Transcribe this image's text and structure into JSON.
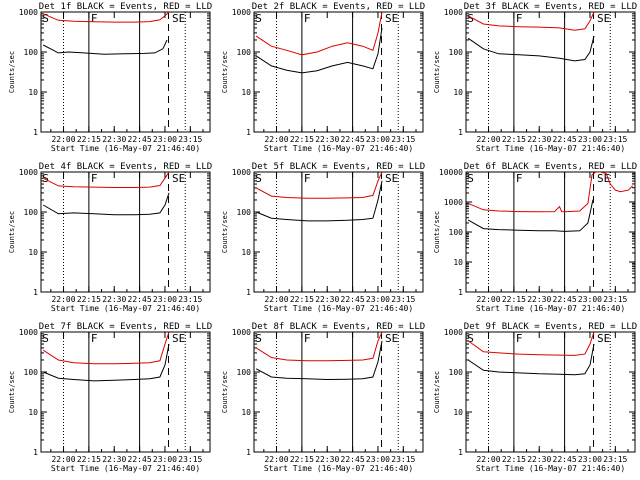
{
  "chart_data": [
    {
      "type": "line",
      "title": "Det 1f BLACK = Events, RED = LLD",
      "xlabel": "Start Time (16-May-07 21:46:40)",
      "ylabel": "Counts/sec",
      "yscale": "log",
      "ylim": [
        1,
        1000
      ],
      "yticks": [
        "1",
        "10",
        "100",
        "1000"
      ],
      "xlim": [
        21.778,
        23.444
      ],
      "xticks": [
        {
          "label": "22:00",
          "value": 22.0
        },
        {
          "label": "22:15",
          "value": 22.25
        },
        {
          "label": "22:30",
          "value": 22.5
        },
        {
          "label": "22:45",
          "value": 22.75
        },
        {
          "label": "23:00",
          "value": 23.0
        },
        {
          "label": "23:15",
          "value": 23.25
        }
      ],
      "markers": [
        "S",
        "F",
        "SE"
      ],
      "series": [
        {
          "color": "#000000",
          "x": [
            21.8,
            21.95,
            22.05,
            22.2,
            22.4,
            22.6,
            22.8,
            22.9,
            22.98,
            23.02
          ],
          "y": [
            150,
            95,
            100,
            95,
            88,
            90,
            92,
            95,
            120,
            200
          ]
        },
        {
          "color": "#dd0000",
          "x": [
            21.8,
            21.95,
            22.1,
            22.3,
            22.5,
            22.7,
            22.85,
            22.95,
            23.0,
            23.04
          ],
          "y": [
            900,
            620,
            590,
            570,
            560,
            560,
            575,
            640,
            800,
            1000
          ]
        }
      ]
    },
    {
      "type": "line",
      "title": "Det 2f BLACK = Events, RED = LLD",
      "xlabel": "Start Time (16-May-07 21:46:40)",
      "ylabel": "Counts/sec",
      "yscale": "log",
      "ylim": [
        1,
        1000
      ],
      "yticks": [
        "1",
        "10",
        "100",
        "1000"
      ],
      "xlim": [
        21.778,
        23.444
      ],
      "xticks": [
        {
          "label": "22:00",
          "value": 22.0
        },
        {
          "label": "22:15",
          "value": 22.25
        },
        {
          "label": "22:30",
          "value": 22.5
        },
        {
          "label": "22:45",
          "value": 22.75
        },
        {
          "label": "23:00",
          "value": 23.0
        },
        {
          "label": "23:15",
          "value": 23.25
        }
      ],
      "markers": [
        "S",
        "F",
        "SE"
      ],
      "series": [
        {
          "color": "#000000",
          "x": [
            21.8,
            21.95,
            22.1,
            22.25,
            22.4,
            22.55,
            22.7,
            22.85,
            22.95,
            23.0,
            23.04
          ],
          "y": [
            80,
            45,
            35,
            30,
            34,
            45,
            55,
            45,
            38,
            90,
            400
          ]
        },
        {
          "color": "#dd0000",
          "x": [
            21.8,
            21.95,
            22.1,
            22.25,
            22.4,
            22.55,
            22.7,
            22.85,
            22.95,
            23.0,
            23.04
          ],
          "y": [
            250,
            140,
            110,
            85,
            100,
            140,
            170,
            140,
            110,
            300,
            1000
          ]
        }
      ]
    },
    {
      "type": "line",
      "title": "Det 3f BLACK = Events, RED = LLD",
      "xlabel": "Start Time (16-May-07 21:46:40)",
      "ylabel": "Counts/sec",
      "yscale": "log",
      "ylim": [
        1,
        1000
      ],
      "yticks": [
        "1",
        "10",
        "100",
        "1000"
      ],
      "xlim": [
        21.778,
        23.444
      ],
      "xticks": [
        {
          "label": "22:00",
          "value": 22.0
        },
        {
          "label": "22:15",
          "value": 22.25
        },
        {
          "label": "22:30",
          "value": 22.5
        },
        {
          "label": "22:45",
          "value": 22.75
        },
        {
          "label": "23:00",
          "value": 23.0
        },
        {
          "label": "23:15",
          "value": 23.25
        }
      ],
      "markers": [
        "S",
        "F",
        "SE"
      ],
      "series": [
        {
          "color": "#000000",
          "x": [
            21.8,
            21.95,
            22.1,
            22.3,
            22.5,
            22.7,
            22.85,
            22.95,
            23.0,
            23.04
          ],
          "y": [
            220,
            120,
            90,
            85,
            80,
            70,
            60,
            65,
            100,
            250
          ]
        },
        {
          "color": "#dd0000",
          "x": [
            21.8,
            21.95,
            22.1,
            22.3,
            22.5,
            22.7,
            22.85,
            22.95,
            23.0,
            23.04
          ],
          "y": [
            800,
            500,
            450,
            430,
            420,
            400,
            350,
            380,
            600,
            1000
          ]
        }
      ]
    },
    {
      "type": "line",
      "title": "Det 4f BLACK = Events, RED = LLD",
      "xlabel": "Start Time (16-May-07 21:46:40)",
      "ylabel": "Counts/sec",
      "yscale": "log",
      "ylim": [
        1,
        1000
      ],
      "yticks": [
        "1",
        "10",
        "100",
        "1000"
      ],
      "xlim": [
        21.778,
        23.444
      ],
      "xticks": [
        {
          "label": "22:00",
          "value": 22.0
        },
        {
          "label": "22:15",
          "value": 22.25
        },
        {
          "label": "22:30",
          "value": 22.5
        },
        {
          "label": "22:45",
          "value": 22.75
        },
        {
          "label": "23:00",
          "value": 23.0
        },
        {
          "label": "23:15",
          "value": 23.25
        }
      ],
      "markers": [
        "S",
        "F",
        "SE"
      ],
      "series": [
        {
          "color": "#000000",
          "x": [
            21.8,
            21.95,
            22.1,
            22.3,
            22.5,
            22.7,
            22.85,
            22.95,
            23.0,
            23.04
          ],
          "y": [
            150,
            90,
            95,
            90,
            85,
            85,
            88,
            95,
            150,
            300
          ]
        },
        {
          "color": "#dd0000",
          "x": [
            21.8,
            21.95,
            22.1,
            22.3,
            22.5,
            22.7,
            22.85,
            22.95,
            23.0,
            23.04
          ],
          "y": [
            700,
            450,
            430,
            420,
            410,
            410,
            420,
            460,
            700,
            1000
          ]
        }
      ]
    },
    {
      "type": "line",
      "title": "Det 5f BLACK = Events, RED = LLD",
      "xlabel": "Start Time (16-May-07 21:46:40)",
      "ylabel": "Counts/sec",
      "yscale": "log",
      "ylim": [
        1,
        1000
      ],
      "yticks": [
        "1",
        "10",
        "100",
        "1000"
      ],
      "xlim": [
        21.778,
        23.444
      ],
      "xticks": [
        {
          "label": "22:00",
          "value": 22.0
        },
        {
          "label": "22:15",
          "value": 22.25
        },
        {
          "label": "22:30",
          "value": 22.5
        },
        {
          "label": "22:45",
          "value": 22.75
        },
        {
          "label": "23:00",
          "value": 23.0
        },
        {
          "label": "23:15",
          "value": 23.25
        }
      ],
      "markers": [
        "S",
        "F",
        "SE"
      ],
      "series": [
        {
          "color": "#000000",
          "x": [
            21.8,
            21.95,
            22.1,
            22.3,
            22.5,
            22.7,
            22.85,
            22.95,
            23.0,
            23.04
          ],
          "y": [
            100,
            70,
            65,
            60,
            60,
            62,
            65,
            70,
            200,
            600
          ]
        },
        {
          "color": "#dd0000",
          "x": [
            21.8,
            21.95,
            22.1,
            22.3,
            22.5,
            22.7,
            22.85,
            22.95,
            23.0,
            23.04
          ],
          "y": [
            400,
            250,
            230,
            220,
            220,
            225,
            230,
            260,
            600,
            1000
          ]
        }
      ]
    },
    {
      "type": "line",
      "title": "Det 6f BLACK = Events, RED = LLD",
      "xlabel": "Start Time (16-May-07 21:46:40)",
      "ylabel": "Counts/sec",
      "yscale": "log",
      "ylim": [
        1,
        10000
      ],
      "yticks": [
        "1",
        "10",
        "100",
        "1000",
        "10000"
      ],
      "xlim": [
        21.778,
        23.444
      ],
      "xticks": [
        {
          "label": "22:00",
          "value": 22.0
        },
        {
          "label": "22:15",
          "value": 22.25
        },
        {
          "label": "22:30",
          "value": 22.5
        },
        {
          "label": "22:45",
          "value": 22.75
        },
        {
          "label": "23:00",
          "value": 23.0
        },
        {
          "label": "23:15",
          "value": 23.25
        }
      ],
      "markers": [
        "S",
        "F",
        "SE"
      ],
      "series": [
        {
          "color": "#000000",
          "x": [
            21.8,
            21.95,
            22.1,
            22.3,
            22.5,
            22.65,
            22.75,
            22.9,
            22.98,
            23.03
          ],
          "y": [
            250,
            130,
            120,
            115,
            110,
            110,
            105,
            110,
            200,
            1200
          ]
        },
        {
          "color": "#dd0000",
          "x": [
            21.8,
            21.95,
            22.1,
            22.3,
            22.5,
            22.65,
            22.7,
            22.72,
            22.75,
            22.9,
            22.98,
            23.02,
            23.06,
            23.1,
            23.16,
            23.2,
            23.25,
            23.3,
            23.38,
            23.42
          ],
          "y": [
            900,
            550,
            500,
            480,
            470,
            480,
            700,
            480,
            470,
            500,
            900,
            8000,
            10000,
            10000,
            9000,
            4000,
            2500,
            2200,
            2500,
            3500
          ]
        }
      ]
    },
    {
      "type": "line",
      "title": "Det 7f BLACK = Events, RED = LLD",
      "xlabel": "Start Time (16-May-07 21:46:40)",
      "ylabel": "Counts/sec",
      "yscale": "log",
      "ylim": [
        1,
        1000
      ],
      "yticks": [
        "1",
        "10",
        "100",
        "1000"
      ],
      "xlim": [
        21.778,
        23.444
      ],
      "xticks": [
        {
          "label": "22:00",
          "value": 22.0
        },
        {
          "label": "22:15",
          "value": 22.25
        },
        {
          "label": "22:30",
          "value": 22.5
        },
        {
          "label": "22:45",
          "value": 22.75
        },
        {
          "label": "23:00",
          "value": 23.0
        },
        {
          "label": "23:15",
          "value": 23.25
        }
      ],
      "markers": [
        "S",
        "F",
        "SE"
      ],
      "series": [
        {
          "color": "#000000",
          "x": [
            21.8,
            21.95,
            22.1,
            22.3,
            22.5,
            22.7,
            22.85,
            22.95,
            23.0,
            23.04
          ],
          "y": [
            100,
            70,
            65,
            60,
            62,
            65,
            68,
            75,
            150,
            500
          ]
        },
        {
          "color": "#dd0000",
          "x": [
            21.8,
            21.95,
            22.1,
            22.3,
            22.5,
            22.7,
            22.85,
            22.95,
            23.0,
            23.04
          ],
          "y": [
            350,
            200,
            170,
            160,
            160,
            165,
            170,
            190,
            500,
            1000
          ]
        }
      ]
    },
    {
      "type": "line",
      "title": "Det 8f BLACK = Events, RED = LLD",
      "xlabel": "Start Time (16-May-07 21:46:40)",
      "ylabel": "Counts/sec",
      "yscale": "log",
      "ylim": [
        1,
        1000
      ],
      "yticks": [
        "1",
        "10",
        "100",
        "1000"
      ],
      "xlim": [
        21.778,
        23.444
      ],
      "xticks": [
        {
          "label": "22:00",
          "value": 22.0
        },
        {
          "label": "22:15",
          "value": 22.25
        },
        {
          "label": "22:30",
          "value": 22.5
        },
        {
          "label": "22:45",
          "value": 22.75
        },
        {
          "label": "23:00",
          "value": 23.0
        },
        {
          "label": "23:15",
          "value": 23.25
        }
      ],
      "markers": [
        "S",
        "F",
        "SE"
      ],
      "series": [
        {
          "color": "#000000",
          "x": [
            21.8,
            21.95,
            22.1,
            22.3,
            22.5,
            22.7,
            22.85,
            22.95,
            23.0,
            23.04
          ],
          "y": [
            120,
            75,
            70,
            68,
            65,
            66,
            68,
            75,
            180,
            600
          ]
        },
        {
          "color": "#dd0000",
          "x": [
            21.8,
            21.95,
            22.1,
            22.3,
            22.5,
            22.7,
            22.85,
            22.95,
            23.0,
            23.04
          ],
          "y": [
            400,
            230,
            200,
            190,
            190,
            195,
            200,
            220,
            600,
            1000
          ]
        }
      ]
    },
    {
      "type": "line",
      "title": "Det 9f BLACK = Events, RED = LLD",
      "xlabel": "Start Time (16-May-07 21:46:40)",
      "ylabel": "Counts/sec",
      "yscale": "log",
      "ylim": [
        1,
        1000
      ],
      "yticks": [
        "1",
        "10",
        "100",
        "1000"
      ],
      "xlim": [
        21.778,
        23.444
      ],
      "xticks": [
        {
          "label": "22:00",
          "value": 22.0
        },
        {
          "label": "22:15",
          "value": 22.25
        },
        {
          "label": "22:30",
          "value": 22.5
        },
        {
          "label": "22:45",
          "value": 22.75
        },
        {
          "label": "23:00",
          "value": 23.0
        },
        {
          "label": "23:15",
          "value": 23.25
        }
      ],
      "markers": [
        "S",
        "F",
        "SE"
      ],
      "series": [
        {
          "color": "#000000",
          "x": [
            21.8,
            21.95,
            22.1,
            22.3,
            22.5,
            22.7,
            22.85,
            22.95,
            23.0,
            23.04
          ],
          "y": [
            200,
            110,
            100,
            95,
            90,
            88,
            85,
            90,
            150,
            500
          ]
        },
        {
          "color": "#dd0000",
          "x": [
            21.8,
            21.95,
            22.1,
            22.3,
            22.5,
            22.7,
            22.85,
            22.95,
            23.0,
            23.04
          ],
          "y": [
            600,
            320,
            300,
            280,
            270,
            265,
            260,
            280,
            500,
            1000
          ]
        }
      ]
    }
  ]
}
